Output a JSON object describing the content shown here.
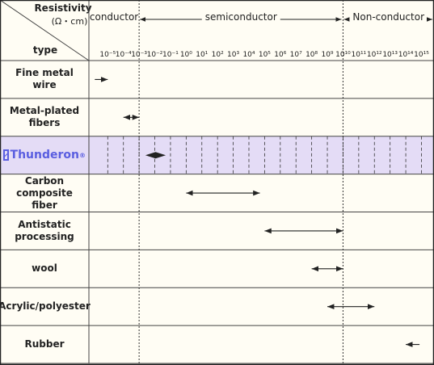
{
  "chart_data": {
    "type": "range",
    "axis_title": "Resistivity",
    "axis_unit": "(Ω・cm)",
    "category_title": "type",
    "log_scale": true,
    "xlim": [
      6.3e-07,
      6300000000000000.0
    ],
    "xticks": [
      {
        "value": 1e-05,
        "label": "10⁻⁵"
      },
      {
        "value": 0.0001,
        "label": "10⁻⁴"
      },
      {
        "value": 0.001,
        "label": "10⁻³"
      },
      {
        "value": 0.01,
        "label": "10⁻²"
      },
      {
        "value": 0.1,
        "label": "10⁻¹"
      },
      {
        "value": 1,
        "label": "10⁰"
      },
      {
        "value": 10,
        "label": "10¹"
      },
      {
        "value": 100,
        "label": "10²"
      },
      {
        "value": 1000,
        "label": "10³"
      },
      {
        "value": 10000.0,
        "label": "10⁴"
      },
      {
        "value": 100000.0,
        "label": "10⁵"
      },
      {
        "value": 1000000.0,
        "label": "10⁶"
      },
      {
        "value": 10000000.0,
        "label": "10⁷"
      },
      {
        "value": 100000000.0,
        "label": "10⁸"
      },
      {
        "value": 1000000000.0,
        "label": "10⁹"
      },
      {
        "value": 10000000000.0,
        "label": "10¹⁰"
      },
      {
        "value": 100000000000.0,
        "label": "10¹¹"
      },
      {
        "value": 1000000000000.0,
        "label": "10¹²"
      },
      {
        "value": 10000000000000.0,
        "label": "10¹³"
      },
      {
        "value": 100000000000000.0,
        "label": "10¹⁴"
      },
      {
        "value": 1000000000000000.0,
        "label": "10¹⁵"
      }
    ],
    "regions": [
      "conductor",
      "semiconductor",
      "Non-conductor"
    ],
    "region_bounds": [
      0.001,
      10000000000.0
    ],
    "categories": [
      "Fine metal wire",
      "Metal-plated fibers",
      "Thunderon",
      "Carbon composite fiber",
      "Antistatic processing",
      "wool",
      "Acrylic/polyester",
      "Rubber"
    ],
    "low": [
      null,
      0.0001,
      0.0025,
      1,
      100000,
      100000000,
      1000000000,
      100000000000000
    ],
    "high": [
      1e-05,
      0.001,
      0.05,
      50000,
      10000000000,
      10000000000,
      1000000000000,
      null
    ],
    "highlight": "Thunderon",
    "trademark": "®",
    "highlight_color": "#e4dcf6",
    "highlight_text_color": "#5a5ee0",
    "mark_color": "#222222",
    "background": "#fffdf4"
  }
}
